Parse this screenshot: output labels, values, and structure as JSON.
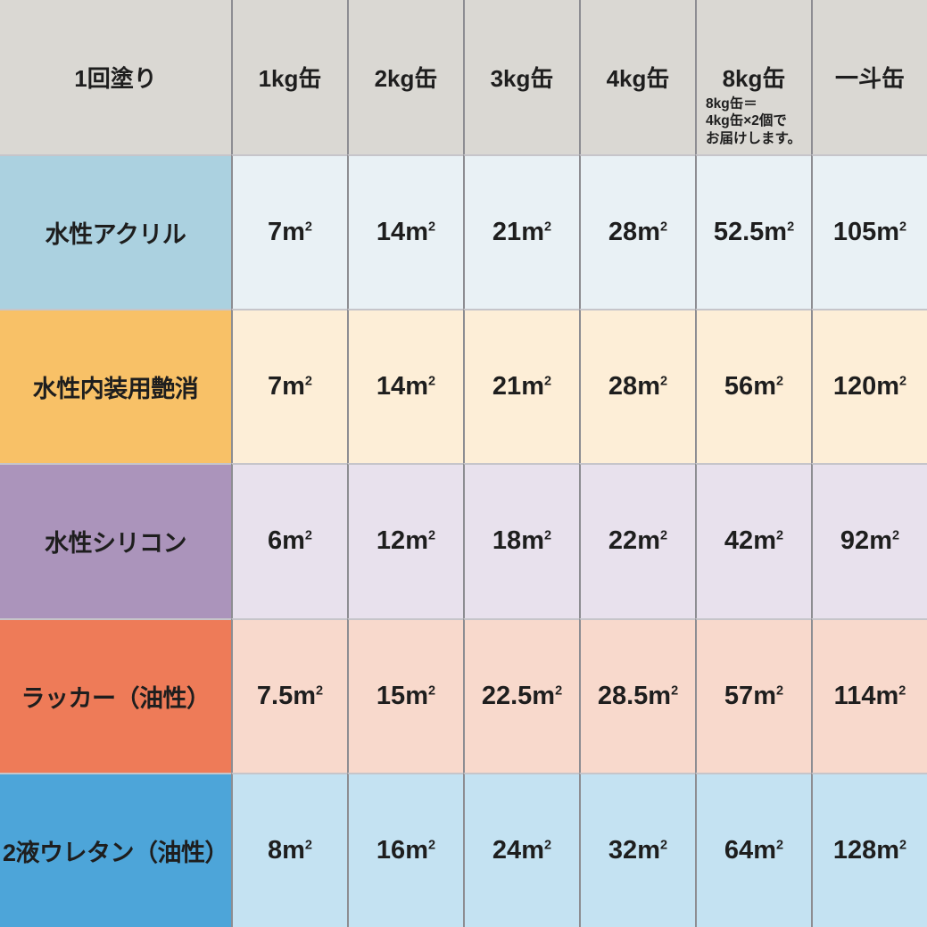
{
  "table": {
    "header": {
      "corner": "1回塗り",
      "cans": [
        "1kg缶",
        "2kg缶",
        "3kg缶",
        "4kg缶",
        "8kg缶",
        "一斗缶"
      ],
      "note_lines": [
        "8kg缶＝",
        "4kg缶×2個で",
        "お届けします。"
      ]
    },
    "unit": {
      "base": "m",
      "exp": "2"
    },
    "rows": [
      {
        "label": "水性アクリル",
        "label_bg": "#abd1e0",
        "cell_bg": "#e9f1f5",
        "values": [
          "7",
          "14",
          "21",
          "28",
          "52.5",
          "105"
        ]
      },
      {
        "label": "水性内装用艶消",
        "label_bg": "#f8c167",
        "cell_bg": "#fdeed7",
        "values": [
          "7",
          "14",
          "21",
          "28",
          "56",
          "120"
        ]
      },
      {
        "label": "水性シリコン",
        "label_bg": "#ab94bb",
        "cell_bg": "#e8e1ed",
        "values": [
          "6",
          "12",
          "18",
          "22",
          "42",
          "92"
        ]
      },
      {
        "label": "ラッカー（油性）",
        "label_bg": "#ee7b58",
        "cell_bg": "#f8d9cc",
        "values": [
          "7.5",
          "15",
          "22.5",
          "28.5",
          "57",
          "114"
        ]
      },
      {
        "label": "2液ウレタン（油性）",
        "label_bg": "#4da5d9",
        "cell_bg": "#c4e2f2",
        "values": [
          "8",
          "16",
          "24",
          "32",
          "64",
          "128"
        ]
      }
    ],
    "colors": {
      "header_bg": "#dad8d3",
      "vertical_divider": "#8d8d92",
      "horizontal_divider": "#c6c5ca",
      "text": "#1e1e1e"
    }
  },
  "chart_data": {
    "type": "table",
    "title": "1回塗り",
    "columns": [
      "1kg缶",
      "2kg缶",
      "3kg缶",
      "4kg缶",
      "8kg缶",
      "一斗缶"
    ],
    "unit": "㎡",
    "rows": [
      {
        "name": "水性アクリル",
        "values": [
          7,
          14,
          21,
          28,
          52.5,
          105
        ]
      },
      {
        "name": "水性内装用艶消",
        "values": [
          7,
          14,
          21,
          28,
          56,
          120
        ]
      },
      {
        "name": "水性シリコン",
        "values": [
          6,
          12,
          18,
          22,
          42,
          92
        ]
      },
      {
        "name": "ラッカー（油性）",
        "values": [
          7.5,
          15,
          22.5,
          28.5,
          57,
          114
        ]
      },
      {
        "name": "2液ウレタン（油性）",
        "values": [
          8,
          16,
          24,
          32,
          64,
          128
        ]
      }
    ],
    "note": "8kg缶＝4kg缶×2個でお届けします。",
    "layout": "rows = paint types with colored label column, columns = can sizes, cells = coverage area per single coat"
  }
}
